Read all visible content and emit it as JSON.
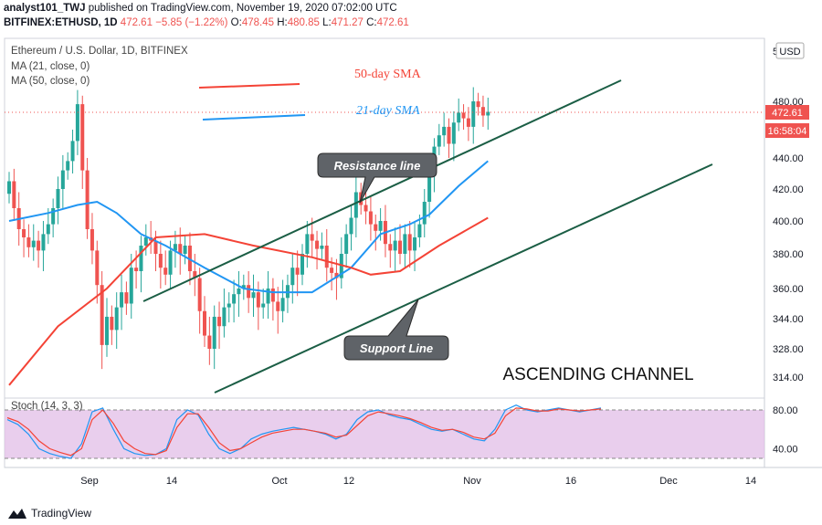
{
  "header": {
    "user": "analyst101_TWJ",
    "published": "published on TradingView.com, November 19, 2020 07:02:00 UTC",
    "symbol": "BITFINEX:ETHUSD, 1D",
    "last": "472.61",
    "change": "−5.85 (−1.22%)",
    "o_label": "O:",
    "o": "478.45",
    "h_label": "H:",
    "h": "480.85",
    "l_label": "L:",
    "l": "471.27",
    "c_label": "C:",
    "c": "472.61"
  },
  "legend": {
    "title": "Ethereum / U.S. Dollar, 1D, BITFINEX",
    "ma21": "MA (21, close, 0)",
    "ma50": "MA (50, close, 0)",
    "stoch": "Stoch (14, 3, 3)"
  },
  "annotations": {
    "sma50": "50-day SMA",
    "sma21": "21-day SMA",
    "resistance": "Resistance line",
    "support": "Support Line",
    "channel": "ASCENDING CHANNEL"
  },
  "price_axis": {
    "currency": "USD",
    "top_label": "5",
    "ticks": [
      "480.00",
      "440.00",
      "420.00",
      "400.00",
      "380.00",
      "360.00",
      "344.00",
      "328.00",
      "314.00"
    ],
    "last_price": "472.61",
    "countdown": "16:58:04"
  },
  "stoch_axis": {
    "ticks": [
      "80.00",
      "40.00"
    ]
  },
  "time_axis": {
    "ticks": [
      "Sep",
      "14",
      "Oct",
      "12",
      "Nov",
      "16",
      "Dec",
      "14"
    ]
  },
  "brand": {
    "name": "TradingView"
  },
  "colors": {
    "up": "#26a69a",
    "down": "#ef5350",
    "ma21": "#2196f3",
    "ma50": "#f44336",
    "channel": "#1b5e45",
    "stoch_band": "#e1bee7"
  },
  "chart_data": {
    "type": "candlestick",
    "x_dates": [
      "2020-08-22",
      "2020-09-01",
      "2020-09-14",
      "2020-10-01",
      "2020-10-12",
      "2020-11-01",
      "2020-11-16",
      "2020-11-19"
    ],
    "ohlc_sample": {
      "open": 478.45,
      "high": 480.85,
      "low": 471.27,
      "close": 472.61
    },
    "closes": [
      425,
      408,
      395,
      390,
      384,
      388,
      382,
      392,
      398,
      408,
      420,
      432,
      438,
      452,
      478,
      432,
      395,
      382,
      362,
      330,
      345,
      338,
      350,
      358,
      352,
      372,
      370,
      385,
      390,
      388,
      380,
      372,
      368,
      382,
      386,
      380,
      385,
      370,
      366,
      348,
      335,
      328,
      345,
      340,
      350,
      352,
      357,
      360,
      362,
      355,
      358,
      350,
      352,
      360,
      353,
      348,
      355,
      362,
      372,
      368,
      380,
      392,
      388,
      383,
      385,
      372,
      369,
      366,
      380,
      392,
      402,
      418,
      410,
      406,
      398,
      394,
      400,
      386,
      382,
      388,
      380,
      392,
      382,
      390,
      398,
      412,
      430,
      448,
      456,
      462,
      450,
      465,
      472,
      468,
      462,
      480,
      476,
      470,
      472.61
    ],
    "ma21_points": [
      [
        0,
        400
      ],
      [
        8,
        405
      ],
      [
        14,
        410
      ],
      [
        18,
        412
      ],
      [
        22,
        405
      ],
      [
        27,
        392
      ],
      [
        32,
        385
      ],
      [
        40,
        372
      ],
      [
        48,
        360
      ],
      [
        54,
        358
      ],
      [
        62,
        358
      ],
      [
        70,
        372
      ],
      [
        76,
        392
      ],
      [
        82,
        398
      ],
      [
        86,
        404
      ],
      [
        92,
        422
      ],
      [
        98,
        438
      ]
    ],
    "ma50_points": [
      [
        0,
        310
      ],
      [
        10,
        340
      ],
      [
        20,
        360
      ],
      [
        30,
        390
      ],
      [
        40,
        392
      ],
      [
        50,
        385
      ],
      [
        62,
        378
      ],
      [
        70,
        372
      ],
      [
        74,
        368
      ],
      [
        80,
        370
      ],
      [
        88,
        385
      ],
      [
        98,
        402
      ]
    ],
    "stoch_k": [
      70,
      65,
      55,
      40,
      35,
      32,
      30,
      45,
      78,
      82,
      60,
      40,
      35,
      33,
      34,
      40,
      70,
      80,
      75,
      55,
      40,
      35,
      40,
      50,
      55,
      58,
      60,
      62,
      60,
      58,
      55,
      50,
      55,
      70,
      78,
      80,
      75,
      72,
      70,
      65,
      60,
      58,
      60,
      55,
      50,
      48,
      60,
      80,
      85,
      80,
      78,
      80,
      82,
      80,
      78,
      80,
      82
    ],
    "stoch_d": [
      72,
      68,
      60,
      48,
      40,
      36,
      33,
      40,
      70,
      80,
      66,
      48,
      40,
      35,
      34,
      38,
      62,
      76,
      76,
      62,
      46,
      38,
      40,
      46,
      52,
      56,
      58,
      60,
      60,
      58,
      56,
      52,
      54,
      64,
      74,
      78,
      76,
      74,
      71,
      67,
      62,
      59,
      60,
      57,
      52,
      50,
      56,
      74,
      82,
      81,
      79,
      79,
      81,
      80,
      79,
      80,
      81
    ],
    "ylim": [
      305,
      510
    ],
    "stoch_ylim": [
      20,
      90
    ],
    "channel": {
      "resistance": [
        [
          350,
          155
        ],
        [
          470,
          300
        ]
      ],
      "support": [
        [
          332,
          78
        ],
        [
          478,
          212
        ]
      ]
    }
  }
}
